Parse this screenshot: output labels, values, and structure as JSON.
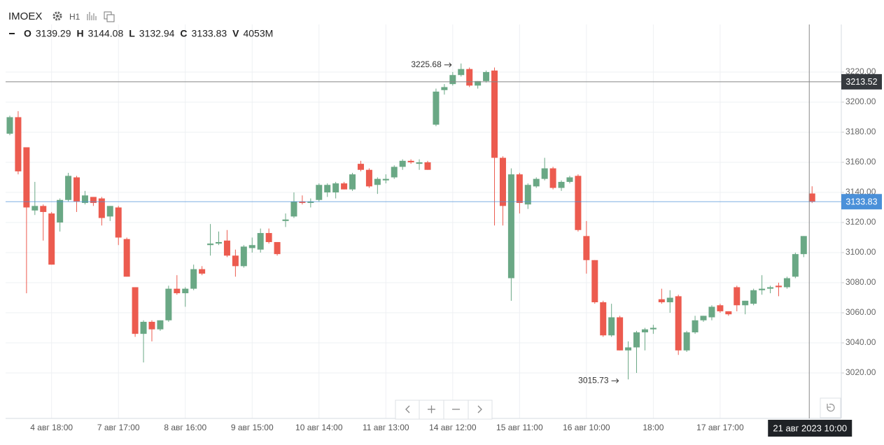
{
  "header": {
    "symbol": "IMOEX",
    "interval": "H1"
  },
  "chart_data": {
    "type": "candlestick",
    "legend": {
      "open": "O",
      "high": "H",
      "low": "L",
      "close": "C",
      "volume_key": "V",
      "volume": "4053M"
    },
    "up_color": "#6aa885",
    "down_color": "#ec5b4f",
    "categories": [
      null,
      null,
      null,
      null,
      null,
      "4 авг 18:00",
      null,
      null,
      null,
      null,
      null,
      null,
      null,
      "7 авг 17:00",
      null,
      null,
      null,
      null,
      null,
      null,
      null,
      "8 авг 16:00",
      null,
      null,
      null,
      null,
      null,
      null,
      null,
      "9 авг 15:00",
      null,
      null,
      null,
      null,
      null,
      null,
      null,
      "10 авг 14:00",
      null,
      null,
      null,
      null,
      null,
      null,
      null,
      "11 авг 13:00",
      null,
      null,
      null,
      null,
      null,
      null,
      null,
      "14 авг 12:00",
      null,
      null,
      null,
      null,
      null,
      null,
      null,
      "15 авг 11:00",
      null,
      null,
      null,
      null,
      null,
      null,
      null,
      "16 авг 10:00",
      null,
      null,
      null,
      null,
      null,
      null,
      null,
      "18:00",
      null,
      null,
      null,
      null,
      null,
      null,
      null,
      "17 авг 17:00",
      null,
      null,
      null,
      null,
      null,
      null,
      null,
      null,
      null,
      null,
      null
    ],
    "open": [
      3179,
      3190,
      3170,
      3128,
      3131,
      3126,
      3120,
      3135,
      3150,
      3133,
      3137,
      3136,
      3124,
      3130,
      3109,
      3077,
      3046,
      3054,
      3049,
      3055,
      3076,
      3073,
      3076,
      3089,
      3105,
      3106,
      3108,
      3098,
      3091,
      3103,
      3102,
      3113,
      3107,
      3121,
      3124,
      3134,
      3133,
      3135,
      3140,
      3140,
      3146,
      3142,
      3159,
      3155,
      3145,
      3148,
      3150,
      3157,
      3161,
      3159,
      3160,
      3185,
      3208,
      3212,
      3218,
      3222,
      3211,
      3214,
      3221,
      3163,
      3083,
      3152,
      3132,
      3144,
      3149,
      3156,
      3143,
      3147,
      3151,
      3111,
      3095,
      3067,
      3045,
      3057,
      3035,
      3037,
      3047,
      3049,
      3069,
      3067,
      3071,
      3035,
      3047,
      3055,
      3057,
      3065,
      3061,
      3077,
      3065,
      3066,
      3075,
      3076,
      3078,
      3077,
      3084,
      3099,
      3139.29
    ],
    "high": [
      3191,
      3194,
      3170,
      3147,
      3132,
      3127,
      3136,
      3153,
      3151,
      3141,
      3137,
      3137,
      3131,
      3131,
      3110,
      3077,
      3055,
      3055,
      3055,
      3078,
      3085,
      3077,
      3092,
      3091,
      3119,
      3114,
      3115,
      3102,
      3105,
      3110,
      3116,
      3116,
      3107,
      3126,
      3140,
      3138,
      3136,
      3146,
      3146,
      3147,
      3147,
      3153,
      3161,
      3156,
      3150,
      3152,
      3158,
      3162,
      3162,
      3162,
      3161,
      3209,
      3212,
      3220,
      3225.68,
      3223,
      3214,
      3221,
      3223,
      3164,
      3156,
      3153,
      3146,
      3150,
      3163,
      3157,
      3148,
      3151,
      3152,
      3121,
      3095,
      3068,
      3066,
      3058,
      3041,
      3048,
      3050,
      3052,
      3076,
      3075,
      3072,
      3048,
      3058,
      3058,
      3065,
      3066,
      3061,
      3078,
      3068,
      3076,
      3085,
      3078,
      3080,
      3084,
      3100,
      3111,
      3144.08
    ],
    "low": [
      3178,
      3152,
      3073,
      3125,
      3108,
      3092,
      3114,
      3134,
      3127,
      3132,
      3131,
      3118,
      3121,
      3105,
      3084,
      3044,
      3027,
      3041,
      3048,
      3054,
      3072,
      3064,
      3075,
      3085,
      3098,
      3105,
      3097,
      3084,
      3090,
      3100,
      3100,
      3106,
      3098,
      3117,
      3123,
      3132,
      3130,
      3134,
      3137,
      3136,
      3142,
      3141,
      3154,
      3143,
      3139,
      3146,
      3149,
      3155,
      3159,
      3155,
      3155,
      3184,
      3205,
      3211,
      3217,
      3210,
      3209,
      3213,
      3118,
      3118,
      3068,
      3126,
      3129,
      3143,
      3148,
      3142,
      3141,
      3146,
      3114,
      3086,
      3066,
      3044,
      3044,
      3035,
      3015.73,
      3020,
      3035,
      3046,
      3066,
      3060,
      3032,
      3034,
      3046,
      3054,
      3055,
      3060,
      3058,
      3061,
      3059,
      3065,
      3072,
      3073,
      3071,
      3076,
      3083,
      3097,
      3132.94
    ],
    "close": [
      3190,
      3154,
      3130,
      3131,
      3127,
      3092,
      3135,
      3151,
      3134,
      3138,
      3133,
      3123,
      3131,
      3110,
      3084,
      3046,
      3054,
      3049,
      3055,
      3076,
      3073,
      3076,
      3089,
      3086,
      3106,
      3107,
      3098,
      3091,
      3104,
      3105,
      3113,
      3107,
      3099,
      3122,
      3134,
      3133,
      3134,
      3145,
      3145,
      3146,
      3142,
      3152,
      3155,
      3144,
      3149,
      3149,
      3157,
      3161,
      3160,
      3160,
      3155,
      3207,
      3210,
      3218,
      3222,
      3211,
      3214,
      3220,
      3163,
      3131,
      3152,
      3133,
      3145,
      3149,
      3156,
      3143,
      3147,
      3150,
      3115,
      3095,
      3067,
      3045,
      3057,
      3035,
      3037,
      3047,
      3049,
      3050,
      3067,
      3070,
      3035,
      3047,
      3055,
      3058,
      3064,
      3061,
      3059,
      3065,
      3068,
      3075,
      3076,
      3077,
      3077,
      3083,
      3099,
      3111,
      3133.83
    ],
    "ylim": [
      2989.8,
      3251.6
    ],
    "yticks": [
      {
        "value": 3020,
        "label": "3020.00"
      },
      {
        "value": 3040,
        "label": "3040.00"
      },
      {
        "value": 3060,
        "label": "3060.00"
      },
      {
        "value": 3080,
        "label": "3080.00"
      },
      {
        "value": 3100,
        "label": "3100.00"
      },
      {
        "value": 3120,
        "label": "3120.00"
      },
      {
        "value": 3140,
        "label": "3140.00"
      },
      {
        "value": 3160,
        "label": "3160.00"
      },
      {
        "value": 3180,
        "label": "3180.00"
      },
      {
        "value": 3200,
        "label": "3200.00"
      },
      {
        "value": 3220,
        "label": "3220.00"
      }
    ],
    "grid": true,
    "annotations": [
      {
        "index": 54,
        "value": 3225.68
      },
      {
        "index": 74,
        "value": 3015.73
      }
    ],
    "crosshair": {
      "price": 3213.52,
      "time": "21 авг 2023 10:00"
    },
    "last_price_color": "#4a90d9"
  }
}
